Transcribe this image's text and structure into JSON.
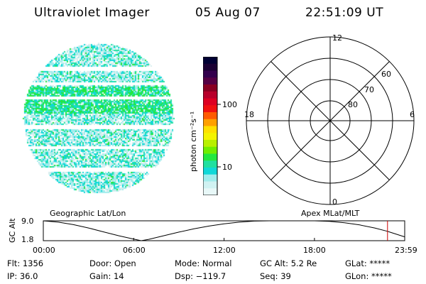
{
  "header": {
    "title": "Ultraviolet Imager",
    "date": "05 Aug 07",
    "time": "22:51:09 UT"
  },
  "colorbar": {
    "label": "photon cm⁻²s⁻¹",
    "ticks": [
      "100",
      "10"
    ],
    "colors": [
      "#000033",
      "#1a0033",
      "#33004d",
      "#550044",
      "#880022",
      "#b8002b",
      "#dd0022",
      "#f01010",
      "#ff5a00",
      "#ffa000",
      "#ffe000",
      "#f4f400",
      "#b8f000",
      "#70ee00",
      "#22e840",
      "#20e0a0",
      "#10d8d8",
      "#a0ecec",
      "#d0f2f2",
      "#e8f8f8"
    ]
  },
  "polar": {
    "mlt_labels": {
      "top": "12",
      "left": "18",
      "right": "6",
      "bottom": "0"
    },
    "lat_labels": [
      "60",
      "70",
      "80"
    ]
  },
  "map_labels": {
    "geo": "Geographic Lat/Lon",
    "apex": "Apex MLat/MLT"
  },
  "alt_plot": {
    "ylabel": "GC Alt",
    "y_ticks": [
      "9.0",
      "1.8"
    ],
    "x_ticks": [
      "00:00",
      "06:00",
      "12:00",
      "18:00",
      "23:59"
    ],
    "chart_data": {
      "type": "line",
      "x_hours": [
        0,
        1,
        2,
        3,
        4,
        5,
        6,
        6.5,
        7,
        8,
        9,
        10,
        11,
        12,
        13,
        14,
        15,
        16,
        17,
        18,
        19,
        20,
        21,
        22,
        22.85,
        23,
        23.99
      ],
      "y_re": [
        9.0,
        8.5,
        7.6,
        6.4,
        5.0,
        3.6,
        2.4,
        1.8,
        2.3,
        3.6,
        4.9,
        6.1,
        7.1,
        7.9,
        8.5,
        8.9,
        9.1,
        9.2,
        9.2,
        9.1,
        8.8,
        8.3,
        7.5,
        6.4,
        5.2,
        4.9,
        3.2
      ],
      "ylim": [
        1.8,
        9.0
      ],
      "xlim": [
        0,
        23.99
      ],
      "marker_hour": 22.85,
      "line_color": "#000000",
      "marker_color": "#cc0000"
    }
  },
  "status": {
    "flt": "Flt: 1356",
    "ip": "IP: 36.0",
    "door": "Door: Open",
    "gain": "Gain: 14",
    "mode": "Mode: Normal",
    "dsp": "Dsp: −119.7",
    "gc_alt": "GC Alt: 5.2 Re",
    "seq": "Seq: 39",
    "glat": "GLat: *****",
    "glon": "GLon: *****"
  }
}
